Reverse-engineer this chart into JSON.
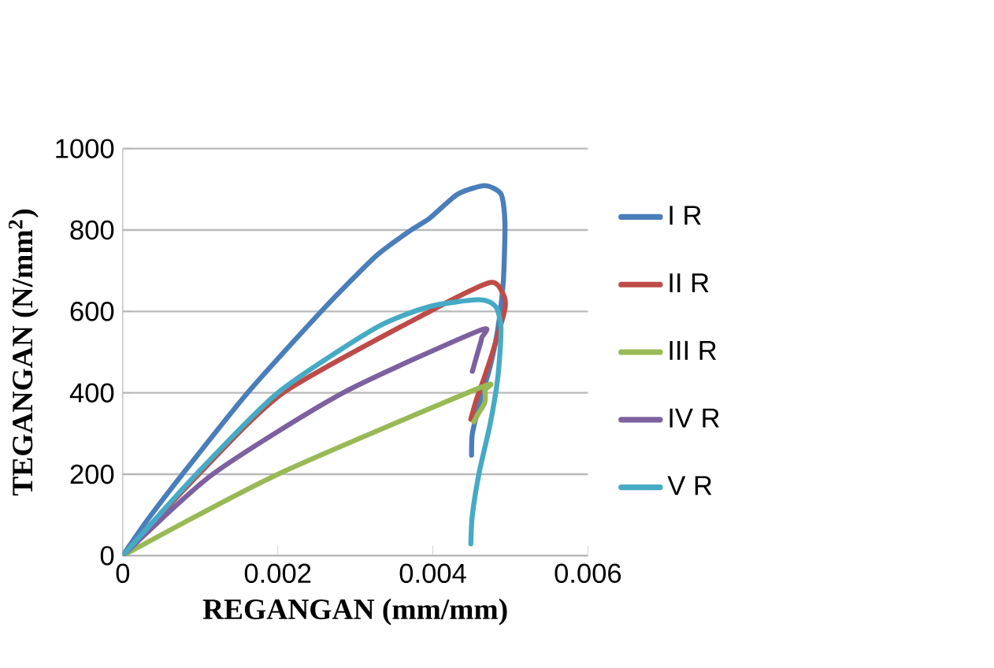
{
  "chart_data": {
    "type": "line",
    "xlabel": "REGANGAN (mm/mm)",
    "ylabel": "TEGANGAN (N/mm$^{2}$)",
    "xlim": [
      0,
      0.006
    ],
    "ylim": [
      0,
      1000
    ],
    "xticks": [
      0,
      0.002,
      0.004,
      0.006
    ],
    "yticks": [
      0,
      200,
      400,
      600,
      800,
      1000
    ],
    "grid": "y",
    "legend": "right",
    "marker": "none",
    "series": [
      {
        "name": "I R",
        "color": "#4a7ebb",
        "x": [
          0,
          0.00032,
          0.00077,
          0.00161,
          0.00256,
          0.00326,
          0.00372,
          0.00396,
          0.00432,
          0.00467,
          0.00488,
          0.00493,
          0.00491,
          0.00484,
          0.00474,
          0.0046,
          0.00451,
          0.0045
        ],
        "values": [
          0,
          88,
          200,
          400,
          600,
          735,
          800,
          829,
          888,
          909,
          888,
          818,
          676,
          559,
          465,
          371,
          300,
          247
        ]
      },
      {
        "name": "II R",
        "color": "#be4b48",
        "x": [
          0,
          0.00098,
          0.00207,
          0.00396,
          0.00474,
          0.00491,
          0.00493,
          0.00481,
          0.00467,
          0.00456,
          0.00449
        ],
        "values": [
          0,
          200,
          400,
          600,
          671,
          641,
          606,
          524,
          441,
          382,
          335
        ]
      },
      {
        "name": "III R",
        "color": "#98b954",
        "x": [
          0,
          0.002,
          0.0046,
          0.00467,
          0.00467,
          0.00458,
          0.00453
        ],
        "values": [
          0,
          200,
          412,
          406,
          376,
          347,
          329
        ]
      },
      {
        "name": "IV R",
        "color": "#7d60a0",
        "x": [
          0,
          0.00116,
          0.00284,
          0.0046,
          0.00463,
          0.00458,
          0.00451
        ],
        "values": [
          0,
          200,
          400,
          553,
          535,
          500,
          453
        ]
      },
      {
        "name": "V R",
        "color": "#46aac5",
        "x": [
          0,
          0.00095,
          0.002,
          0.00326,
          0.00396,
          0.0046,
          0.00481,
          0.00488,
          0.00484,
          0.00474,
          0.0046,
          0.00451,
          0.00449
        ],
        "values": [
          0,
          200,
          400,
          559,
          612,
          629,
          612,
          559,
          441,
          324,
          206,
          100,
          29
        ]
      }
    ]
  }
}
